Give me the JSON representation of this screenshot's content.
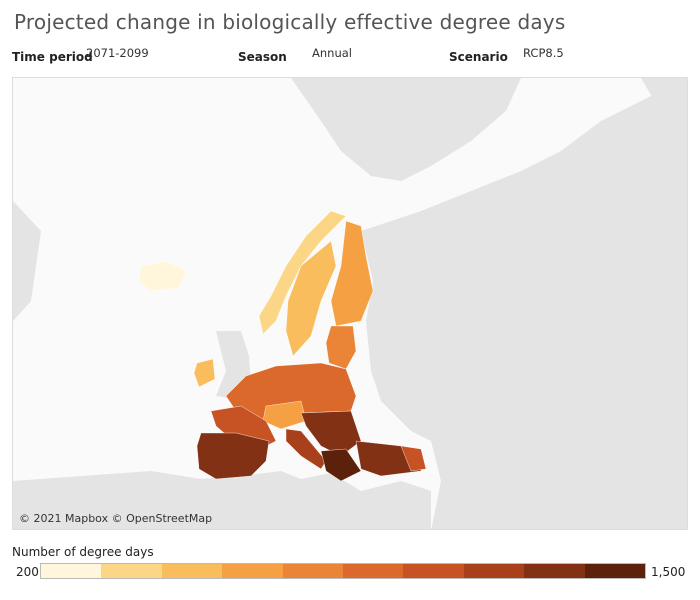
{
  "header": {
    "title": "Projected change in biologically effective degree days"
  },
  "filters": [
    {
      "label": "Time period",
      "value": "2071-2099"
    },
    {
      "label": "Season",
      "value": "Annual"
    },
    {
      "label": "Scenario",
      "value": "RCP8.5"
    }
  ],
  "map": {
    "attribution": "© 2021 Mapbox © OpenStreetMap"
  },
  "legend": {
    "title": "Number of degree days",
    "min": 200,
    "max": {
      "value": 1500,
      "label": "1,500"
    },
    "colors": [
      "#fff6dc",
      "#fcd687",
      "#f9bd5e",
      "#f4a043",
      "#ea8436",
      "#dc692c",
      "#c75223",
      "#a8411b",
      "#833115",
      "#5c210b"
    ]
  }
}
